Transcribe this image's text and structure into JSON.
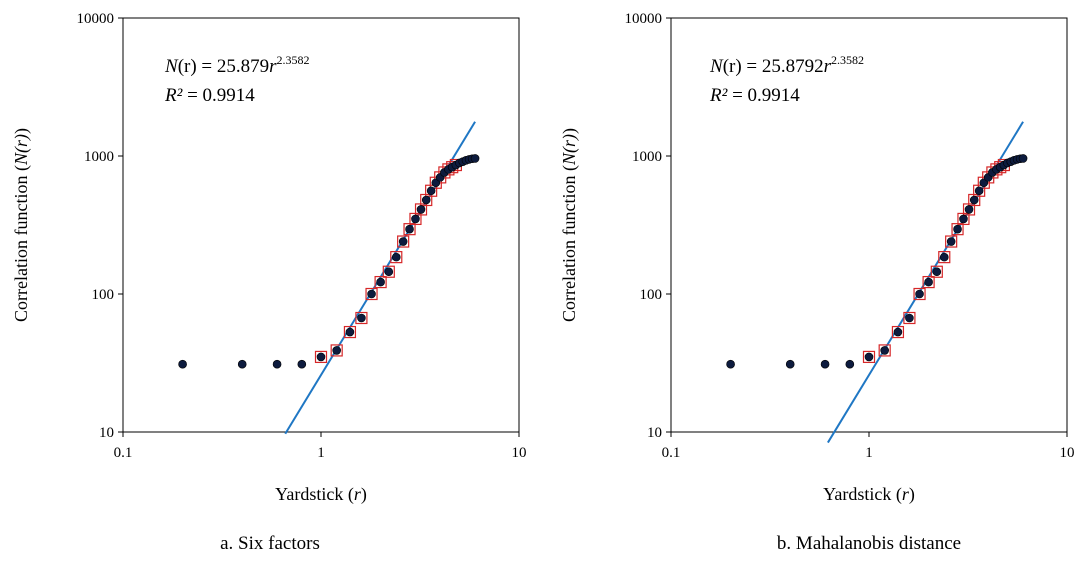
{
  "chart_data": [
    {
      "type": "scatter",
      "caption": "a. Six factors",
      "xlabel_text": "Yardstick (",
      "xlabel_var": "r",
      "xlabel_close": ")",
      "ylabel_text": "Correlation function  (",
      "ylabel_var": "N(r)",
      "ylabel_close": ")",
      "x_scale": "log",
      "y_scale": "log",
      "xlim": [
        0.1,
        10
      ],
      "ylim": [
        10,
        10000
      ],
      "x_ticks": [
        "0.1",
        "1",
        "10"
      ],
      "y_ticks": [
        "10",
        "100",
        "1000",
        "10000"
      ],
      "equation": {
        "lhs": "N",
        "arg": "(r)",
        "eq": " = 25.879",
        "var": "r",
        "exp": "2.3582"
      },
      "r2": {
        "label": "R²",
        "value": " = 0.9914"
      },
      "fit": {
        "a": 25.879,
        "b": 2.3582,
        "x_range": [
          0.66,
          6.0
        ],
        "color": "#1f77c4"
      },
      "series": [
        {
          "marker": "square",
          "color": "#d62728",
          "x": [
            1.0,
            1.2,
            1.4,
            1.6,
            1.8,
            2.0,
            2.2,
            2.4,
            2.6,
            2.8,
            3.0,
            3.2,
            3.4,
            3.6,
            3.8,
            4.0,
            4.2,
            4.4,
            4.6,
            4.8
          ],
          "y": [
            35,
            39,
            53,
            67,
            100,
            122,
            145,
            185,
            240,
            295,
            350,
            410,
            480,
            560,
            640,
            700,
            760,
            800,
            830,
            860
          ]
        },
        {
          "marker": "circle",
          "color": "#0d1b3e",
          "x": [
            0.2,
            0.4,
            0.6,
            0.8,
            1.0,
            1.2,
            1.4,
            1.6,
            1.8,
            2.0,
            2.2,
            2.4,
            2.6,
            2.8,
            3.0,
            3.2,
            3.4,
            3.6,
            3.8,
            4.0,
            4.2,
            4.4,
            4.6,
            4.8,
            5.0,
            5.2,
            5.4,
            5.6,
            5.8,
            6.0
          ],
          "y": [
            31,
            31,
            31,
            31,
            35,
            39,
            53,
            67,
            100,
            122,
            145,
            185,
            240,
            295,
            350,
            410,
            480,
            560,
            640,
            700,
            760,
            800,
            830,
            860,
            890,
            910,
            930,
            945,
            955,
            960
          ]
        }
      ]
    },
    {
      "type": "scatter",
      "caption": "b. Mahalanobis distance",
      "xlabel_text": "Yardstick (",
      "xlabel_var": "r",
      "xlabel_close": ")",
      "ylabel_text": "Correlation function  (",
      "ylabel_var": "N(r)",
      "ylabel_close": ")",
      "x_scale": "log",
      "y_scale": "log",
      "xlim": [
        0.1,
        10
      ],
      "ylim": [
        10,
        10000
      ],
      "x_ticks": [
        "0.1",
        "1",
        "10"
      ],
      "y_ticks": [
        "10",
        "100",
        "1000",
        "10000"
      ],
      "equation": {
        "lhs": "N",
        "arg": "(r)",
        "eq": " = 25.8792",
        "var": "r",
        "exp": "2.3582"
      },
      "r2": {
        "label": "R²",
        "value": " = 0.9914"
      },
      "fit": {
        "a": 25.8792,
        "b": 2.3582,
        "x_range": [
          0.62,
          6.0
        ],
        "color": "#1f77c4"
      },
      "series": [
        {
          "marker": "square",
          "color": "#d62728",
          "x": [
            1.0,
            1.2,
            1.4,
            1.6,
            1.8,
            2.0,
            2.2,
            2.4,
            2.6,
            2.8,
            3.0,
            3.2,
            3.4,
            3.6,
            3.8,
            4.0,
            4.2,
            4.4,
            4.6,
            4.8
          ],
          "y": [
            35,
            39,
            53,
            67,
            100,
            122,
            145,
            185,
            240,
            295,
            350,
            410,
            480,
            560,
            640,
            700,
            760,
            800,
            830,
            860
          ]
        },
        {
          "marker": "circle",
          "color": "#0d1b3e",
          "x": [
            0.2,
            0.4,
            0.6,
            0.8,
            1.0,
            1.2,
            1.4,
            1.6,
            1.8,
            2.0,
            2.2,
            2.4,
            2.6,
            2.8,
            3.0,
            3.2,
            3.4,
            3.6,
            3.8,
            4.0,
            4.2,
            4.4,
            4.6,
            4.8,
            5.0,
            5.2,
            5.4,
            5.6,
            5.8,
            6.0
          ],
          "y": [
            31,
            31,
            31,
            31,
            35,
            39,
            53,
            67,
            100,
            122,
            145,
            185,
            240,
            295,
            350,
            410,
            480,
            560,
            640,
            700,
            760,
            800,
            830,
            860,
            890,
            910,
            930,
            945,
            955,
            960
          ]
        }
      ]
    }
  ]
}
